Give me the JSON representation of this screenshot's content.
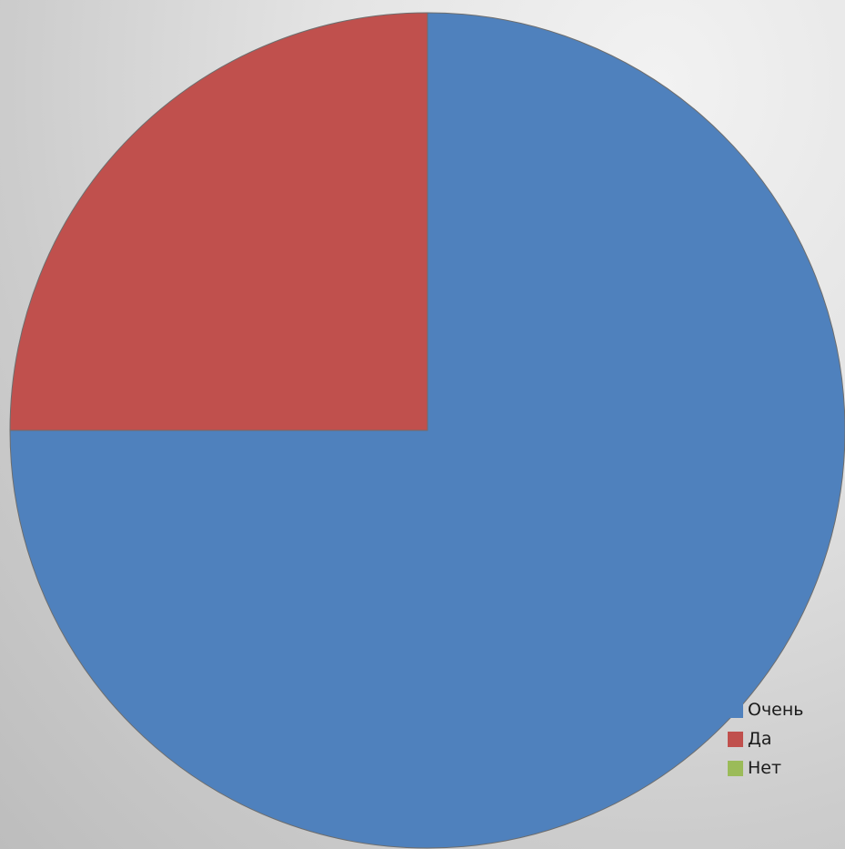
{
  "chart_data": {
    "type": "pie",
    "title": "",
    "categories": [
      "Очень",
      "Да",
      "Нет"
    ],
    "values": [
      75,
      25,
      0
    ],
    "colors": [
      "#4f81bd",
      "#c0504d",
      "#9bbb59"
    ],
    "start_angle_deg": 0,
    "direction": "clockwise",
    "legend_position": "bottom-right"
  }
}
